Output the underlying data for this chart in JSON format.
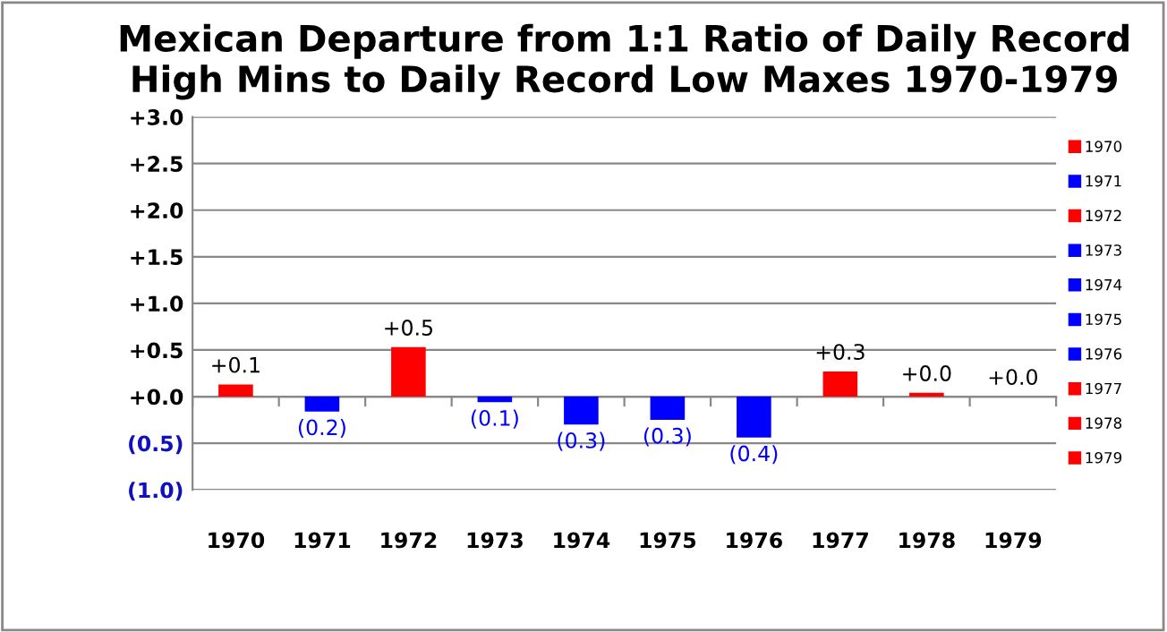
{
  "chart_data": {
    "type": "bar",
    "title": "Mexican Departure from 1:1 Ratio of Daily Record\nHigh Mins to Daily Record Low Maxes 1970-1979",
    "categories": [
      "1970",
      "1971",
      "1972",
      "1973",
      "1974",
      "1975",
      "1976",
      "1977",
      "1978",
      "1979"
    ],
    "series": [
      {
        "name": "1970",
        "color": "#ff0000",
        "values": [
          0.13,
          null,
          null,
          null,
          null,
          null,
          null,
          null,
          null,
          null
        ],
        "value_labels": [
          "+0.1",
          null,
          null,
          null,
          null,
          null,
          null,
          null,
          null,
          null
        ]
      },
      {
        "name": "1971",
        "color": "#0000ff",
        "values": [
          null,
          -0.16,
          null,
          null,
          null,
          null,
          null,
          null,
          null,
          null
        ],
        "value_labels": [
          null,
          "(0.2)",
          null,
          null,
          null,
          null,
          null,
          null,
          null,
          null
        ]
      },
      {
        "name": "1972",
        "color": "#ff0000",
        "values": [
          null,
          null,
          0.53,
          null,
          null,
          null,
          null,
          null,
          null,
          null
        ],
        "value_labels": [
          null,
          null,
          "+0.5",
          null,
          null,
          null,
          null,
          null,
          null,
          null
        ]
      },
      {
        "name": "1973",
        "color": "#0000ff",
        "values": [
          null,
          null,
          null,
          -0.06,
          null,
          null,
          null,
          null,
          null,
          null
        ],
        "value_labels": [
          null,
          null,
          null,
          "(0.1)",
          null,
          null,
          null,
          null,
          null,
          null
        ]
      },
      {
        "name": "1974",
        "color": "#0000ff",
        "values": [
          null,
          null,
          null,
          null,
          -0.3,
          null,
          null,
          null,
          null,
          null
        ],
        "value_labels": [
          null,
          null,
          null,
          null,
          "(0.3)",
          null,
          null,
          null,
          null,
          null
        ]
      },
      {
        "name": "1975",
        "color": "#0000ff",
        "values": [
          null,
          null,
          null,
          null,
          null,
          -0.25,
          null,
          null,
          null,
          null
        ],
        "value_labels": [
          null,
          null,
          null,
          null,
          null,
          "(0.3)",
          null,
          null,
          null,
          null
        ]
      },
      {
        "name": "1976",
        "color": "#0000ff",
        "values": [
          null,
          null,
          null,
          null,
          null,
          null,
          -0.44,
          null,
          null,
          null
        ],
        "value_labels": [
          null,
          null,
          null,
          null,
          null,
          null,
          "(0.4)",
          null,
          null,
          null
        ]
      },
      {
        "name": "1977",
        "color": "#ff0000",
        "values": [
          null,
          null,
          null,
          null,
          null,
          null,
          null,
          0.27,
          null,
          null
        ],
        "value_labels": [
          null,
          null,
          null,
          null,
          null,
          null,
          null,
          "+0.3",
          null,
          null
        ]
      },
      {
        "name": "1978",
        "color": "#ff0000",
        "values": [
          null,
          null,
          null,
          null,
          null,
          null,
          null,
          null,
          0.04,
          null
        ],
        "value_labels": [
          null,
          null,
          null,
          null,
          null,
          null,
          null,
          null,
          "+0.0",
          null
        ]
      },
      {
        "name": "1979",
        "color": "#ff0000",
        "values": [
          null,
          null,
          null,
          null,
          null,
          null,
          null,
          null,
          null,
          0.0
        ],
        "value_labels": [
          null,
          null,
          null,
          null,
          null,
          null,
          null,
          null,
          null,
          "+0.0"
        ]
      }
    ],
    "ylim": [
      -1.0,
      3.0
    ],
    "yticks": [
      {
        "value": -1.0,
        "label": "(1.0)"
      },
      {
        "value": -0.5,
        "label": "(0.5)"
      },
      {
        "value": 0.0,
        "label": "+0.0"
      },
      {
        "value": 0.5,
        "label": "+0.5"
      },
      {
        "value": 1.0,
        "label": "+1.0"
      },
      {
        "value": 1.5,
        "label": "+1.5"
      },
      {
        "value": 2.0,
        "label": "+2.0"
      },
      {
        "value": 2.5,
        "label": "+2.5"
      },
      {
        "value": 3.0,
        "label": "+3.0"
      }
    ],
    "grid": "y",
    "legend": "right"
  }
}
